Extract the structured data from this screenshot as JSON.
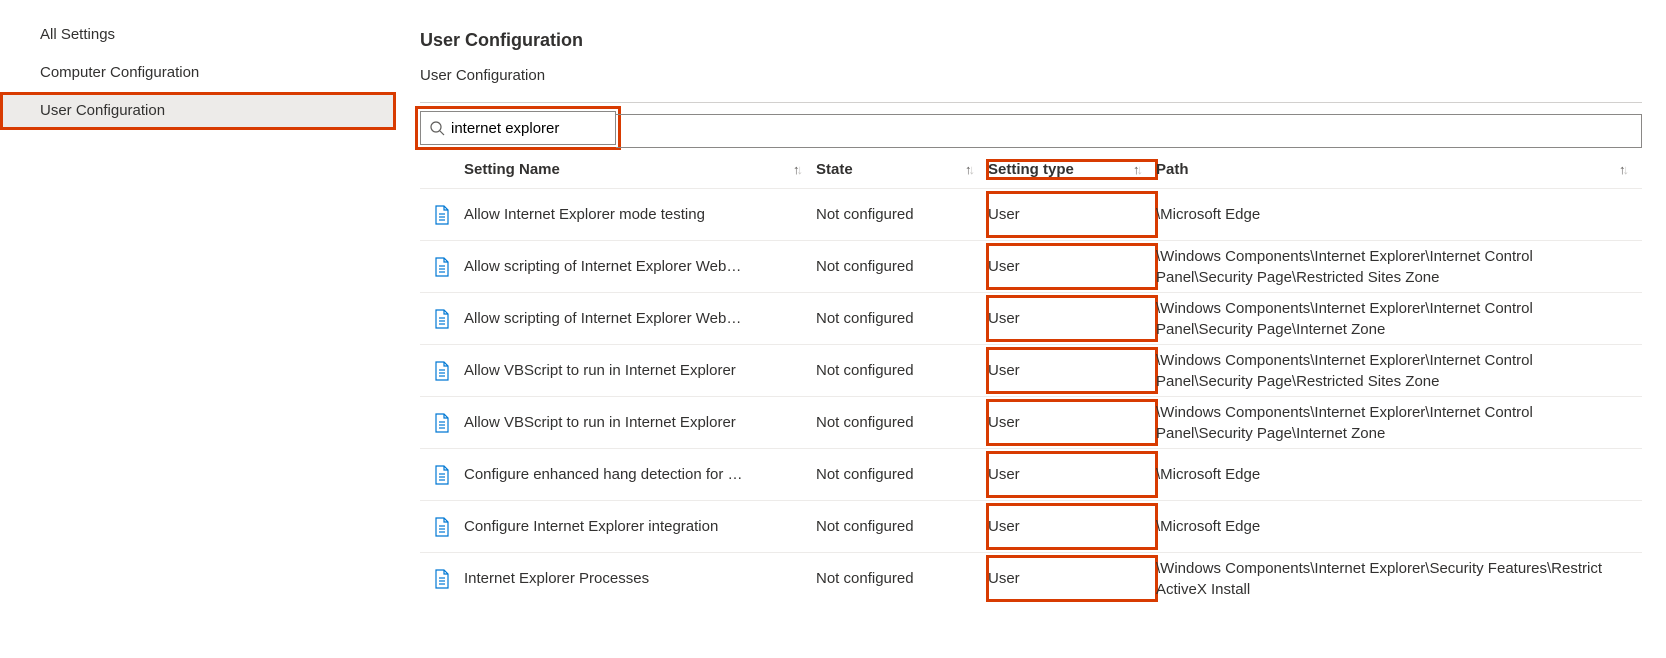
{
  "colors": {
    "highlight": "#d83b01",
    "icon_blue": "#0078d4",
    "sidebar_selected_bg": "#edebe9",
    "border": "#d2d0ce",
    "text": "#323130"
  },
  "sidebar": {
    "items": [
      {
        "label": "All Settings",
        "selected": false,
        "highlighted": false
      },
      {
        "label": "Computer Configuration",
        "selected": false,
        "highlighted": false
      },
      {
        "label": "User Configuration",
        "selected": true,
        "highlighted": true
      }
    ]
  },
  "header": {
    "title": "User Configuration",
    "breadcrumb": "User Configuration"
  },
  "search": {
    "value": "internet explorer",
    "highlighted": true
  },
  "table": {
    "columns": {
      "name": "Setting Name",
      "state": "State",
      "type": "Setting type",
      "path": "Path"
    },
    "type_column_highlighted": true,
    "rows": [
      {
        "name": "Allow Internet Explorer mode testing",
        "state": "Not configured",
        "type": "User",
        "path": "\\Microsoft Edge"
      },
      {
        "name": "Allow scripting of Internet Explorer Web…",
        "state": "Not configured",
        "type": "User",
        "path": "\\Windows Components\\Internet Explorer\\Internet Control Panel\\Security Page\\Restricted Sites Zone"
      },
      {
        "name": "Allow scripting of Internet Explorer Web…",
        "state": "Not configured",
        "type": "User",
        "path": "\\Windows Components\\Internet Explorer\\Internet Control Panel\\Security Page\\Internet Zone"
      },
      {
        "name": "Allow VBScript to run in Internet Explorer",
        "state": "Not configured",
        "type": "User",
        "path": "\\Windows Components\\Internet Explorer\\Internet Control Panel\\Security Page\\Restricted Sites Zone"
      },
      {
        "name": "Allow VBScript to run in Internet Explorer",
        "state": "Not configured",
        "type": "User",
        "path": "\\Windows Components\\Internet Explorer\\Internet Control Panel\\Security Page\\Internet Zone"
      },
      {
        "name": "Configure enhanced hang detection for …",
        "state": "Not configured",
        "type": "User",
        "path": "\\Microsoft Edge"
      },
      {
        "name": "Configure Internet Explorer integration",
        "state": "Not configured",
        "type": "User",
        "path": "\\Microsoft Edge"
      },
      {
        "name": "Internet Explorer Processes",
        "state": "Not configured",
        "type": "User",
        "path": "\\Windows Components\\Internet Explorer\\Security Features\\Restrict ActiveX Install"
      }
    ]
  }
}
